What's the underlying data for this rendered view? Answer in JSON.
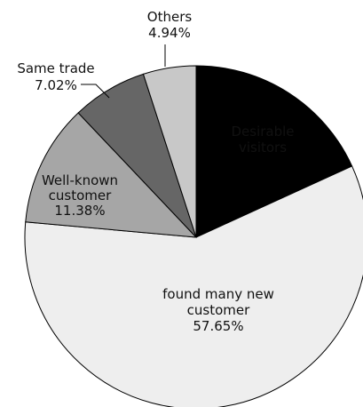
{
  "chart_data": {
    "type": "pie",
    "title": "",
    "slices": [
      {
        "label": "Desirable visitors",
        "label_lines": [
          "Desirable",
          "visitors"
        ],
        "value": 18.01,
        "value_text": "",
        "color": "#000000",
        "label_color": "#ffffff"
      },
      {
        "label": "found many new customer",
        "label_lines": [
          "found many new",
          "customer"
        ],
        "value": 57.65,
        "value_text": "57.65%",
        "color": "#eeeeee",
        "label_color": "#111111"
      },
      {
        "label": "Well-known customer",
        "label_lines": [
          "Well-known",
          "customer"
        ],
        "value": 11.38,
        "value_text": "11.38%",
        "color": "#a6a6a6",
        "label_color": "#111111"
      },
      {
        "label": "Same trade",
        "label_lines": [
          "Same trade"
        ],
        "value": 7.02,
        "value_text": "7.02%",
        "color": "#666666",
        "label_color": "#111111"
      },
      {
        "label": "Others",
        "label_lines": [
          "Others"
        ],
        "value": 4.94,
        "value_text": "4.94%",
        "color": "#c8c8c8",
        "label_color": "#111111"
      }
    ],
    "start": "top (12 o'clock)",
    "direction": "clockwise",
    "legend": "none"
  }
}
